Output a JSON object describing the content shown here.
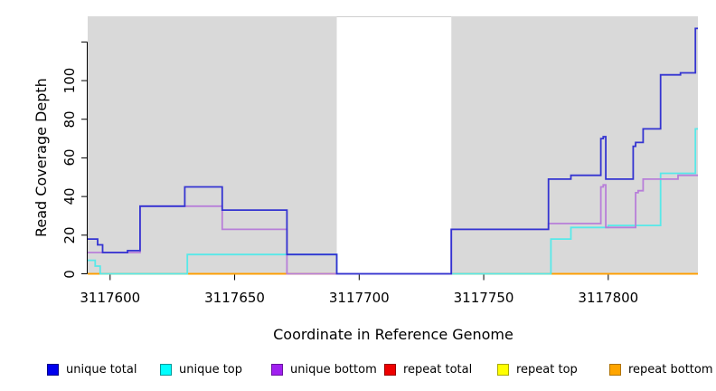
{
  "chart_data": {
    "type": "line",
    "subtype": "step-coverage-plot",
    "title": "",
    "xlabel": "Coordinate in Reference Genome",
    "ylabel": "Read Coverage Depth",
    "xlim": [
      3117591,
      3117836
    ],
    "ylim": [
      0,
      133.3
    ],
    "grid": "off",
    "plot_background": "#ffffff",
    "shaded_region_color": "#d9d9d9",
    "shaded_regions": [
      {
        "from": 3117591,
        "to": 3117691
      },
      {
        "from": 3117737,
        "to": 3117836
      }
    ],
    "gap_region": {
      "from": 3117691,
      "to": 3117737,
      "color": "#ffffff"
    },
    "x_ticks": [
      3117600,
      3117650,
      3117700,
      3117750,
      3117800
    ],
    "x_tick_labels": [
      "3117600",
      "3117650",
      "3117700",
      "3117750",
      "3117800"
    ],
    "y_ticks": [
      0,
      20,
      40,
      60,
      80,
      100,
      120
    ],
    "y_tick_labels": [
      "0",
      "20",
      "40",
      "60",
      "80",
      "100",
      ""
    ],
    "draw_order": [
      "repeat total",
      "repeat top",
      "repeat bottom",
      "unique top",
      "unique bottom",
      "unique total"
    ],
    "series": [
      {
        "name": "unique total",
        "line_color": "#3434d1",
        "points": [
          [
            3117591,
            18
          ],
          [
            3117595,
            15
          ],
          [
            3117597,
            11
          ],
          [
            3117607,
            12
          ],
          [
            3117612,
            35
          ],
          [
            3117630,
            45
          ],
          [
            3117645,
            33
          ],
          [
            3117671,
            10
          ],
          [
            3117691,
            0
          ],
          [
            3117737,
            23
          ],
          [
            3117776,
            49
          ],
          [
            3117785,
            51
          ],
          [
            3117797,
            70
          ],
          [
            3117798,
            71
          ],
          [
            3117799,
            49
          ],
          [
            3117810,
            66
          ],
          [
            3117811,
            68
          ],
          [
            3117814,
            75
          ],
          [
            3117821,
            103
          ],
          [
            3117829,
            104
          ],
          [
            3117835,
            127
          ],
          [
            3117836,
            127
          ]
        ]
      },
      {
        "name": "unique top",
        "line_color": "#57e9e9",
        "points": [
          [
            3117591,
            7
          ],
          [
            3117594,
            4
          ],
          [
            3117596,
            0
          ],
          [
            3117631,
            10
          ],
          [
            3117691,
            0
          ],
          [
            3117777,
            18
          ],
          [
            3117785,
            24
          ],
          [
            3117800,
            25
          ],
          [
            3117821,
            52
          ],
          [
            3117835,
            75
          ],
          [
            3117836,
            75
          ]
        ]
      },
      {
        "name": "unique bottom",
        "line_color": "#b87fd9",
        "points": [
          [
            3117591,
            11
          ],
          [
            3117612,
            35
          ],
          [
            3117645,
            23
          ],
          [
            3117671,
            0
          ],
          [
            3117737,
            23
          ],
          [
            3117776,
            26
          ],
          [
            3117797,
            45
          ],
          [
            3117798,
            46
          ],
          [
            3117799,
            24
          ],
          [
            3117811,
            42
          ],
          [
            3117812,
            43
          ],
          [
            3117814,
            49
          ],
          [
            3117828,
            51
          ],
          [
            3117836,
            51
          ]
        ]
      },
      {
        "name": "repeat total",
        "line_color": "#dd2222",
        "points": [
          [
            3117591,
            0
          ],
          [
            3117836,
            0
          ]
        ]
      },
      {
        "name": "repeat top",
        "line_color": "#f5e642",
        "points": [
          [
            3117591,
            0
          ],
          [
            3117836,
            0
          ]
        ]
      },
      {
        "name": "repeat bottom",
        "line_color": "#ff9d00",
        "points": [
          [
            3117591,
            0
          ],
          [
            3117836,
            0
          ]
        ]
      }
    ]
  },
  "legend": {
    "position": "bottom",
    "items": [
      {
        "label": "unique total",
        "swatch_color": "#0000ee",
        "swatch_border": "#000088"
      },
      {
        "label": "unique top",
        "swatch_color": "#00ffff",
        "swatch_border": "#009999"
      },
      {
        "label": "unique bottom",
        "swatch_color": "#a020f0",
        "swatch_border": "#6a14a0"
      },
      {
        "label": "repeat total",
        "swatch_color": "#ee0000",
        "swatch_border": "#990000"
      },
      {
        "label": "repeat top",
        "swatch_color": "#ffff00",
        "swatch_border": "#aaaa00"
      },
      {
        "label": "repeat bottom",
        "swatch_color": "#ffa500",
        "swatch_border": "#b07300"
      }
    ],
    "item_x_positions": [
      52,
      177,
      300,
      425,
      550,
      674
    ]
  },
  "axes_text": {
    "x_label": "Coordinate in Reference Genome",
    "y_label": "Read Coverage Depth"
  }
}
